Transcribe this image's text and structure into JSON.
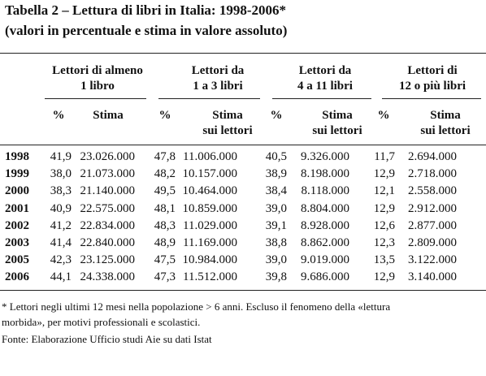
{
  "title": [
    "Tabella 2 – Lettura di libri in Italia: 1998-2006*",
    "(valori in percentuale e stima in valore assoluto)"
  ],
  "groups": [
    [
      "Lettori di almeno",
      "1 libro"
    ],
    [
      "Lettori da",
      "1 a 3 libri"
    ],
    [
      "Lettori da",
      "4 a 11 libri"
    ],
    [
      "Lettori di",
      "12 o più libri"
    ]
  ],
  "subheaders": [
    [
      "%"
    ],
    [
      "Stima"
    ],
    [
      "%"
    ],
    [
      "Stima",
      "sui lettori"
    ],
    [
      "%"
    ],
    [
      "Stima",
      "sui lettori"
    ],
    [
      "%"
    ],
    [
      "Stima",
      "sui lettori"
    ]
  ],
  "rows": [
    {
      "year": "1998",
      "cells": [
        "41,9",
        "23.026.000",
        "47,8",
        "11.006.000",
        "40,5",
        "9.326.000",
        "11,7",
        "2.694.000"
      ]
    },
    {
      "year": "1999",
      "cells": [
        "38,0",
        "21.073.000",
        "48,2",
        "10.157.000",
        "38,9",
        "8.198.000",
        "12,9",
        "2.718.000"
      ]
    },
    {
      "year": "2000",
      "cells": [
        "38,3",
        "21.140.000",
        "49,5",
        "10.464.000",
        "38,4",
        "8.118.000",
        "12,1",
        "2.558.000"
      ]
    },
    {
      "year": "2001",
      "cells": [
        "40,9",
        "22.575.000",
        "48,1",
        "10.859.000",
        "39,0",
        "8.804.000",
        "12,9",
        "2.912.000"
      ]
    },
    {
      "year": "2002",
      "cells": [
        "41,2",
        "22.834.000",
        "48,3",
        "11.029.000",
        "39,1",
        "8.928.000",
        "12,6",
        "2.877.000"
      ]
    },
    {
      "year": "2003",
      "cells": [
        "41,4",
        "22.840.000",
        "48,9",
        "11.169.000",
        "38,8",
        "8.862.000",
        "12,3",
        "2.809.000"
      ]
    },
    {
      "year": "2005",
      "cells": [
        "42,3",
        "23.125.000",
        "47,5",
        "10.984.000",
        "39,0",
        "9.019.000",
        "13,5",
        "3.122.000"
      ]
    },
    {
      "year": "2006",
      "cells": [
        "44,1",
        "24.338.000",
        "47,3",
        "11.512.000",
        "39,8",
        "9.686.000",
        "12,9",
        "3.140.000"
      ]
    }
  ],
  "footnote": [
    "* Lettori negli ultimi 12 mesi nella popolazione > 6 anni. Escluso il fenomeno della «lettura",
    "morbida», per motivi professionali e scolastici."
  ],
  "source": "Fonte: Elaborazione Ufficio studi Aie su dati Istat"
}
